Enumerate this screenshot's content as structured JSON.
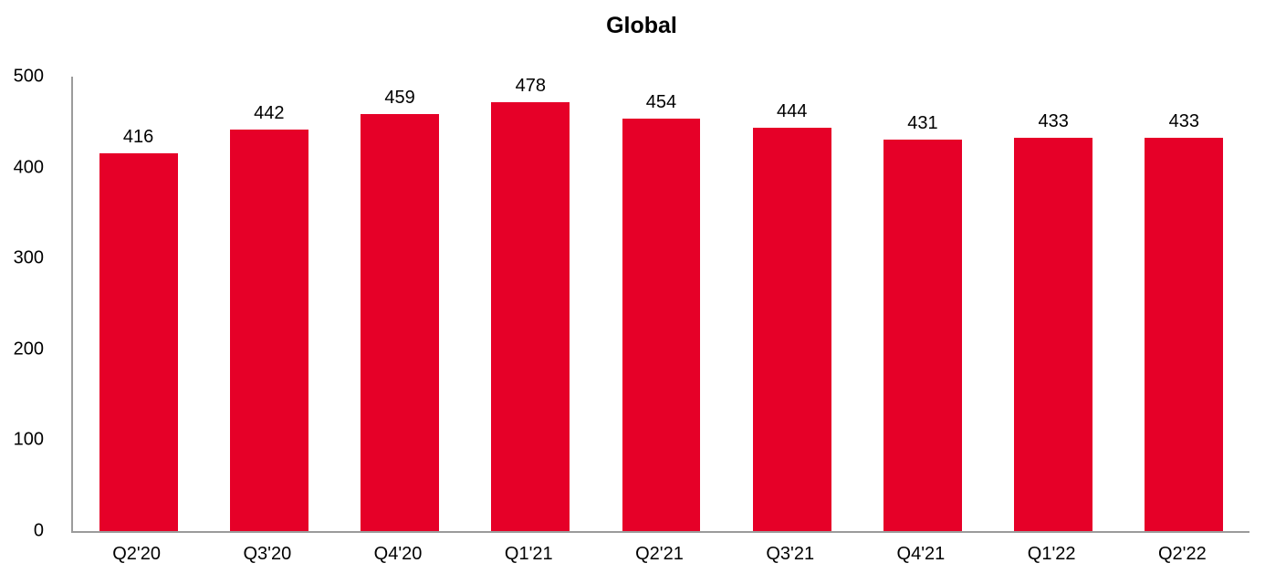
{
  "chart_data": {
    "type": "bar",
    "title": "Global",
    "categories": [
      "Q2'20",
      "Q3'20",
      "Q4'20",
      "Q1'21",
      "Q2'21",
      "Q3'21",
      "Q4'21",
      "Q1'22",
      "Q2'22"
    ],
    "values": [
      416,
      442,
      459,
      478,
      454,
      444,
      431,
      433,
      433
    ],
    "xlabel": "",
    "ylabel": "",
    "ylim": [
      0,
      500
    ],
    "yticks": [
      0,
      100,
      200,
      300,
      400,
      500
    ],
    "grid": false,
    "legend": false,
    "data_labels": true,
    "bar_color": "#e60028",
    "axis_color": "#9b9b9b",
    "text_color": "#000000",
    "background_color": "#ffffff"
  }
}
